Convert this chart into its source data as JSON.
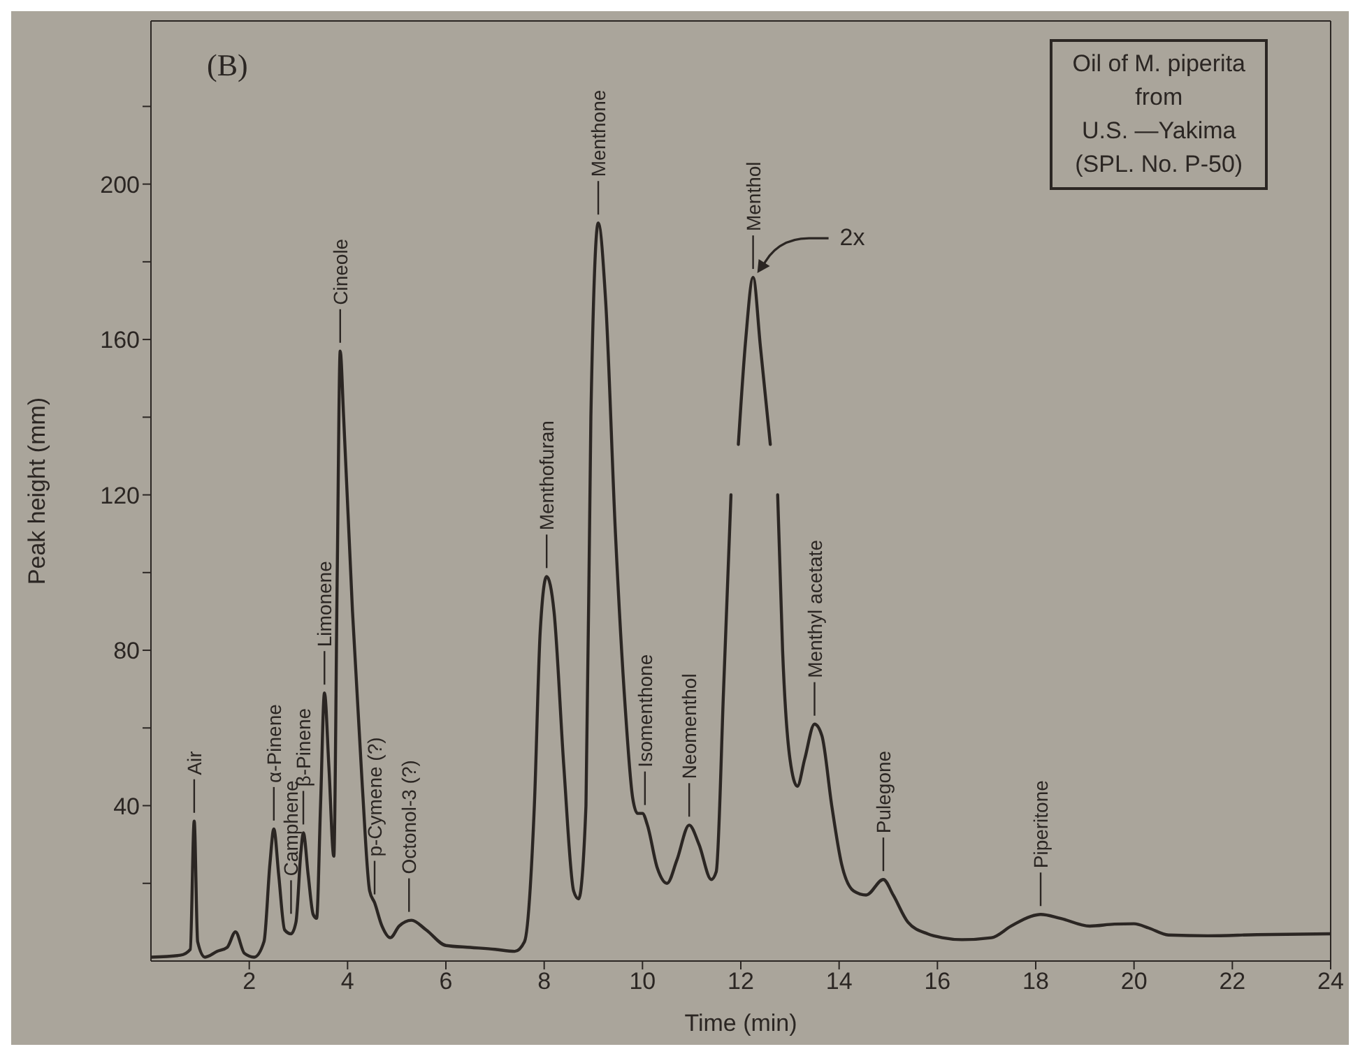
{
  "chart_data": {
    "type": "line",
    "title": "Oil of M. piperita\nfrom\nU.S. —Yakima\n(SPL. No. P-50)",
    "xlabel": "Time   (min)",
    "ylabel": "Peak height (mm)",
    "xlim": [
      0,
      24
    ],
    "xticks": [
      2,
      4,
      6,
      8,
      10,
      12,
      14,
      16,
      18,
      20,
      22,
      24
    ],
    "ylim": [
      0,
      242
    ],
    "yticks": [
      {
        "value": 20,
        "label": null
      },
      40,
      {
        "value": 60,
        "label": null
      },
      80,
      {
        "value": 100,
        "label": null
      },
      120,
      {
        "value": 140,
        "label": null
      },
      160,
      {
        "value": 180,
        "label": null
      },
      200,
      {
        "value": 220,
        "label": null
      }
    ],
    "marker": "none",
    "line_style": "solid",
    "series": [
      {
        "color": "#2b2623",
        "x": [
          0,
          0.6,
          0.8,
          0.88,
          0.95,
          1.1,
          1.35,
          1.55,
          1.72,
          1.9,
          2.1,
          2.3,
          2.42,
          2.5,
          2.6,
          2.72,
          2.85,
          2.95,
          3.05,
          3.1,
          3.2,
          3.3,
          3.37,
          3.45,
          3.53,
          3.62,
          3.72,
          3.79,
          3.85,
          3.92,
          4.1,
          4.3,
          4.45,
          4.55,
          4.7,
          4.87,
          5.05,
          5.3,
          5.6,
          6.0,
          6.5,
          7.0,
          7.4,
          7.6,
          7.8,
          7.92,
          8.05,
          8.2,
          8.4,
          8.6,
          8.7,
          8.85,
          8.95,
          9.1,
          9.25,
          9.45,
          9.65,
          9.8,
          9.9,
          10.0,
          10.1,
          10.3,
          10.5,
          10.7,
          10.95,
          11.15,
          11.4,
          11.5,
          11.65,
          11.8,
          11.9,
          11.95,
          12.1,
          12.25,
          12.4,
          12.6,
          12.7,
          12.75,
          12.85,
          13.0,
          13.15,
          13.3,
          13.5,
          13.65,
          13.85,
          14.05,
          14.3,
          14.55,
          14.9,
          15.1,
          15.4,
          15.8,
          16.1,
          16.5,
          17.1,
          17.5,
          17.9,
          18.1,
          18.5,
          19.1,
          19.6,
          20.0,
          20.3,
          20.7,
          21.5,
          22.5,
          24
        ],
        "values": [
          1,
          1.5,
          3,
          36,
          5,
          1,
          2.5,
          3.5,
          7.5,
          2,
          1,
          5,
          25,
          34,
          22,
          8,
          7,
          10,
          28,
          33,
          22,
          12,
          11,
          40,
          69,
          50,
          27,
          100,
          157,
          140,
          90,
          45,
          18,
          15,
          9,
          6,
          9,
          10.5,
          8,
          4,
          3.5,
          3,
          2.5,
          5,
          40,
          85,
          99,
          90,
          50,
          18,
          16,
          40,
          140,
          190,
          170,
          110,
          65,
          42,
          38,
          38,
          35,
          24,
          20,
          26,
          35,
          30,
          21,
          23,
          70,
          120,
          null,
          133,
          160,
          176,
          158,
          133,
          null,
          120,
          80,
          52,
          45,
          52,
          61,
          58,
          40,
          25,
          18,
          17,
          21,
          17,
          10,
          7,
          6,
          5.5,
          6,
          9,
          11.5,
          12,
          11,
          9,
          9.5,
          9.6,
          8.5,
          6.7,
          6.5,
          6.8,
          7
        ]
      }
    ],
    "annotations": [
      "(B)",
      {
        "text": "Air",
        "x": 0.88,
        "y": 36
      },
      {
        "text": "α-Pinene",
        "x": 2.5,
        "y": 34
      },
      {
        "text": "Camphene",
        "x": 2.85,
        "y": 10
      },
      {
        "text": "β-Pinene",
        "x": 3.1,
        "y": 33
      },
      {
        "text": "Limonene",
        "x": 3.53,
        "y": 69
      },
      {
        "text": "Cineole",
        "x": 3.85,
        "y": 157
      },
      {
        "text": "p-Cymene (?)",
        "x": 4.55,
        "y": 15
      },
      {
        "text": "Octonol-3 (?)",
        "x": 5.25,
        "y": 10.5
      },
      {
        "text": "Menthofuran",
        "x": 8.05,
        "y": 99
      },
      {
        "text": "Menthone",
        "x": 9.1,
        "y": 190
      },
      {
        "text": "Isomenthone",
        "x": 10.05,
        "y": 38
      },
      {
        "text": "Neomenthol",
        "x": 10.95,
        "y": 35
      },
      {
        "text": "Menthol",
        "x": 12.25,
        "y": 176
      },
      {
        "text": "Menthyl acetate",
        "x": 13.5,
        "y": 61
      },
      {
        "text": "Pulegone",
        "x": 14.9,
        "y": 21
      },
      {
        "text": "Piperitone",
        "x": 18.1,
        "y": 12
      },
      {
        "text": "2x",
        "x": 12.25,
        "y": 176
      }
    ]
  }
}
